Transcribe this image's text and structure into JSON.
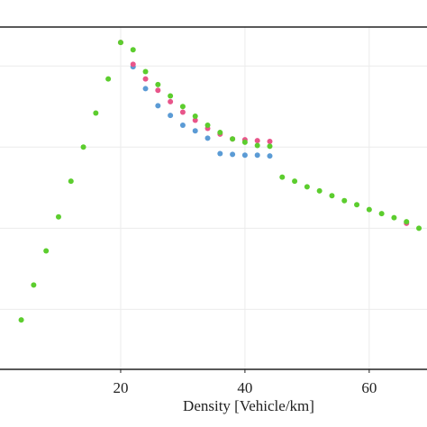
{
  "chart_data": {
    "type": "scatter",
    "x_label": "Density [Vehicle/km]",
    "xlim": [
      0.58,
      69.3
    ],
    "xticks": [
      20,
      40,
      60
    ],
    "ylim": [
      0.26,
      4.48
    ],
    "grid_y": [
      1,
      2,
      3,
      4
    ],
    "grid": true,
    "series": [
      {
        "color": "#5b9bd5",
        "x": [
          22,
          24,
          26,
          28,
          30,
          32,
          34,
          36,
          38,
          40,
          42,
          44
        ],
        "values": [
          3.99,
          3.72,
          3.51,
          3.39,
          3.27,
          3.2,
          3.11,
          2.92,
          2.91,
          2.9,
          2.9,
          2.89
        ]
      },
      {
        "color": "#e8558a",
        "x": [
          20,
          22,
          24,
          26,
          28,
          30,
          32,
          34,
          36,
          38,
          40,
          42,
          44,
          66
        ],
        "values": [
          4.29,
          4.02,
          3.84,
          3.7,
          3.56,
          3.43,
          3.33,
          3.23,
          3.16,
          3.1,
          3.09,
          3.08,
          3.07,
          2.06
        ]
      },
      {
        "color": "#5ccd2e",
        "x": [
          4,
          6,
          8,
          10,
          12,
          14,
          16,
          18,
          20,
          22,
          24,
          26,
          28,
          30,
          32,
          34,
          36,
          38,
          40,
          42,
          44,
          46,
          48,
          50,
          52,
          54,
          56,
          58,
          60,
          62,
          64,
          66,
          68
        ],
        "values": [
          0.87,
          1.3,
          1.72,
          2.14,
          2.58,
          3.0,
          3.42,
          3.84,
          4.29,
          4.2,
          3.93,
          3.77,
          3.63,
          3.5,
          3.38,
          3.27,
          3.18,
          3.1,
          3.06,
          3.02,
          3.01,
          2.63,
          2.58,
          2.51,
          2.46,
          2.4,
          2.34,
          2.29,
          2.23,
          2.18,
          2.13,
          2.08,
          2.0
        ]
      }
    ]
  }
}
